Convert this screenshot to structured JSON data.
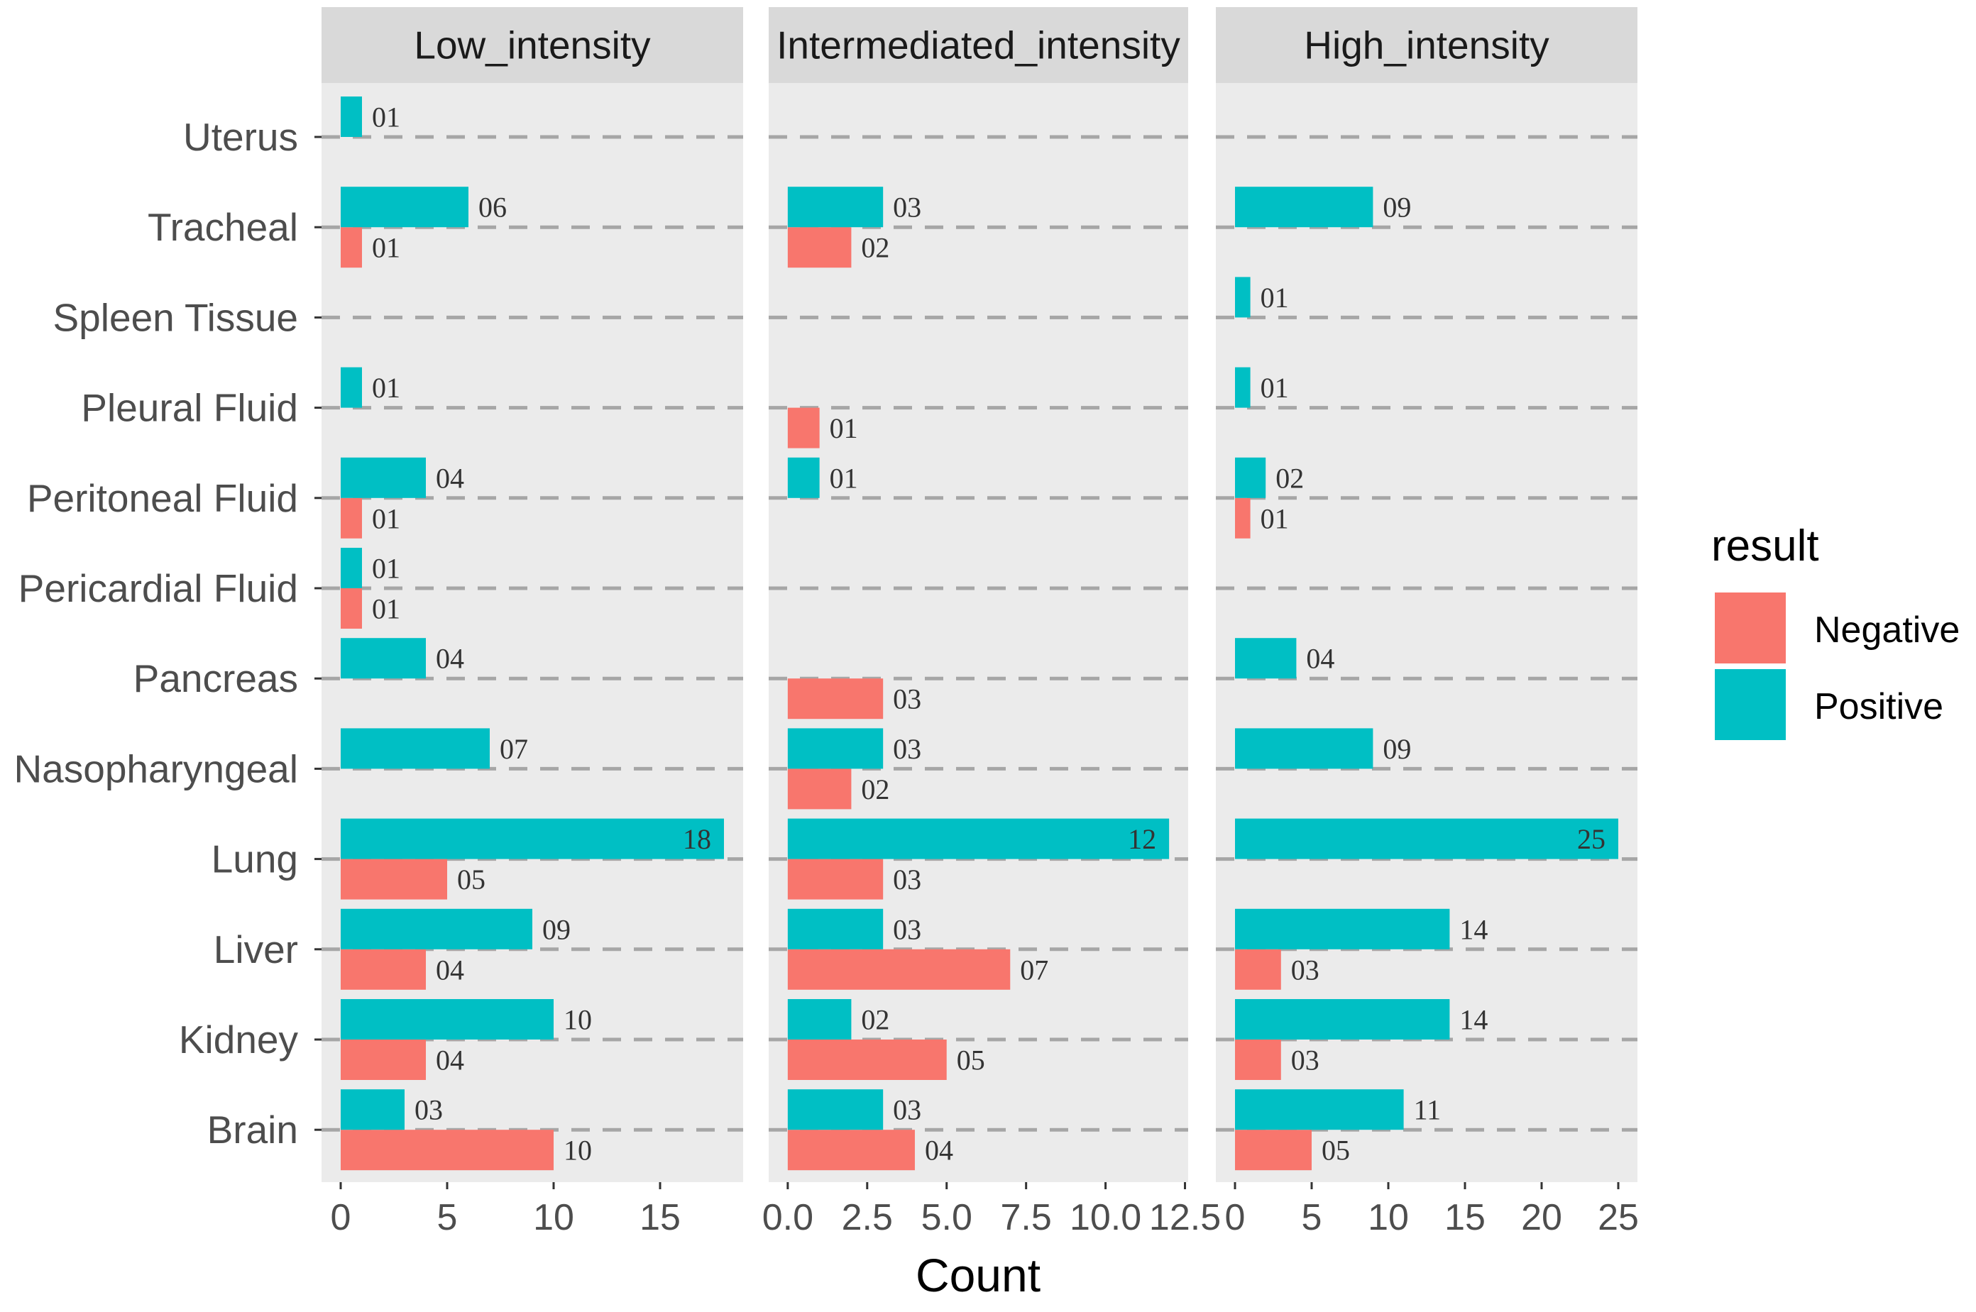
{
  "chart_data": {
    "type": "bar",
    "orientation": "horizontal",
    "facet_variable": "intensity",
    "xlabel": "Count",
    "ylabel": "",
    "categories": [
      "Uterus",
      "Tracheal",
      "Spleen Tissue",
      "Pleural Fluid",
      "Peritoneal Fluid",
      "Pericardial Fluid",
      "Pancreas",
      "Nasopharyngeal",
      "Lung",
      "Liver",
      "Kidney",
      "Brain"
    ],
    "legend": {
      "title": "result",
      "position": "right",
      "items": [
        {
          "name": "Negative",
          "color": "#F8766D"
        },
        {
          "name": "Positive",
          "color": "#00BFC4"
        }
      ]
    },
    "grid": true,
    "gridline_style": "dashed",
    "facets": [
      {
        "title": "Low_intensity",
        "xlim": [
          -0.9,
          18.9
        ],
        "xticks": [
          0,
          5,
          10,
          15
        ],
        "xtick_labels": [
          "0",
          "5",
          "10",
          "15"
        ],
        "series": [
          {
            "name": "Negative",
            "values": [
              null,
              1,
              null,
              null,
              1,
              1,
              null,
              null,
              5,
              4,
              4,
              10
            ],
            "labels": [
              null,
              "01",
              null,
              null,
              "01",
              "01",
              null,
              null,
              "05",
              "04",
              "04",
              "10"
            ]
          },
          {
            "name": "Positive",
            "values": [
              1,
              6,
              null,
              1,
              4,
              1,
              4,
              7,
              18,
              9,
              10,
              3
            ],
            "labels": [
              "01",
              "06",
              null,
              "01",
              "04",
              "01",
              "04",
              "07",
              "18",
              "09",
              "10",
              "03"
            ]
          }
        ]
      },
      {
        "title": "Intermediated_intensity",
        "xlim": [
          -0.6,
          12.6
        ],
        "xticks": [
          0,
          2.5,
          5,
          7.5,
          10,
          12.5
        ],
        "xtick_labels": [
          "0.0",
          "2.5",
          "5.0",
          "7.5",
          "10.0",
          "12.5"
        ],
        "series": [
          {
            "name": "Negative",
            "values": [
              null,
              2,
              null,
              1,
              null,
              null,
              3,
              2,
              3,
              7,
              5,
              4
            ],
            "labels": [
              null,
              "02",
              null,
              "01",
              null,
              null,
              "03",
              "02",
              "03",
              "07",
              "05",
              "04"
            ]
          },
          {
            "name": "Positive",
            "values": [
              null,
              3,
              null,
              null,
              1,
              null,
              null,
              3,
              12,
              3,
              2,
              3
            ],
            "labels": [
              null,
              "03",
              null,
              null,
              "01",
              null,
              null,
              "03",
              "12",
              "03",
              "02",
              "03"
            ]
          }
        ]
      },
      {
        "title": "High_intensity",
        "xlim": [
          -1.25,
          26.25
        ],
        "xticks": [
          0,
          5,
          10,
          15,
          20,
          25
        ],
        "xtick_labels": [
          "0",
          "5",
          "10",
          "15",
          "20",
          "25"
        ],
        "series": [
          {
            "name": "Negative",
            "values": [
              null,
              null,
              null,
              null,
              1,
              null,
              null,
              null,
              null,
              3,
              3,
              5
            ],
            "labels": [
              null,
              null,
              null,
              null,
              "01",
              null,
              null,
              null,
              null,
              "03",
              "03",
              "05"
            ]
          },
          {
            "name": "Positive",
            "values": [
              null,
              9,
              1,
              1,
              2,
              null,
              4,
              9,
              25,
              14,
              14,
              11
            ],
            "labels": [
              null,
              "09",
              "01",
              "01",
              "02",
              null,
              "04",
              "09",
              "25",
              "14",
              "14",
              "11"
            ]
          }
        ]
      }
    ]
  }
}
